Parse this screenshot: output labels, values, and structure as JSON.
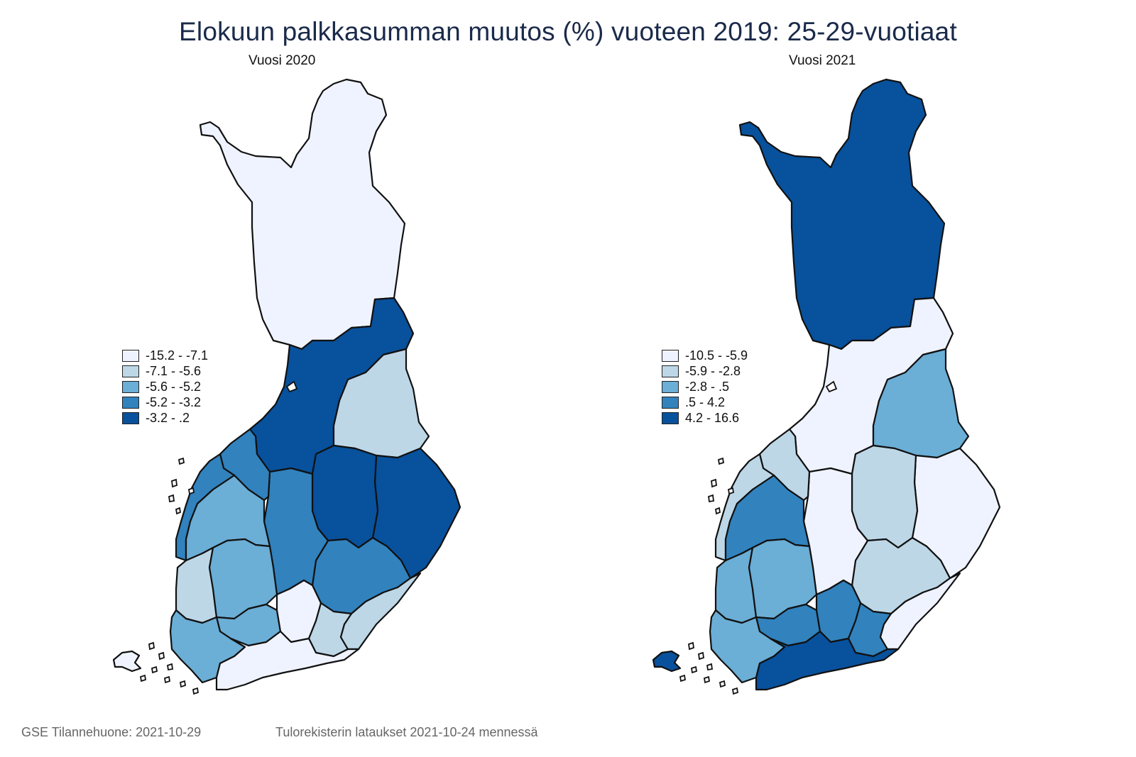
{
  "title": "Elokuun palkkasumman muutos (%) vuoteen 2019: 25-29-vuotiaat",
  "colors": {
    "c1": "#eff3ff",
    "c2": "#bdd7e7",
    "c3": "#6baed6",
    "c4": "#3182bd",
    "c5": "#08519c",
    "outline": "#111111"
  },
  "maps": [
    {
      "subtitle": "Vuosi 2020",
      "legend": [
        {
          "label": "-15.2  -  -7.1",
          "color": "#eff3ff"
        },
        {
          "label": "-7.1  -  -5.6",
          "color": "#bdd7e7"
        },
        {
          "label": "-5.6  -  -5.2",
          "color": "#6baed6"
        },
        {
          "label": "-5.2  -  -3.2",
          "color": "#3182bd"
        },
        {
          "label": "-3.2  -  .2",
          "color": "#08519c"
        }
      ],
      "regions": [
        {
          "id": "lappi",
          "class": 1
        },
        {
          "id": "pohjois-pohjanmaa",
          "class": 5
        },
        {
          "id": "kainuu",
          "class": 2
        },
        {
          "id": "pohjois-karjala",
          "class": 5
        },
        {
          "id": "pohjois-savo",
          "class": 5
        },
        {
          "id": "etela-savo",
          "class": 4
        },
        {
          "id": "keski-suomi",
          "class": 4
        },
        {
          "id": "keski-pohjanmaa",
          "class": 4
        },
        {
          "id": "pohjanmaa",
          "class": 4
        },
        {
          "id": "etela-pohjanmaa",
          "class": 3
        },
        {
          "id": "satakunta",
          "class": 2
        },
        {
          "id": "pirkanmaa",
          "class": 3
        },
        {
          "id": "kanta-hame",
          "class": 3
        },
        {
          "id": "paijat-hame",
          "class": 1
        },
        {
          "id": "kymenlaakso",
          "class": 2
        },
        {
          "id": "etela-karjala",
          "class": 2
        },
        {
          "id": "varsinais-suomi",
          "class": 3
        },
        {
          "id": "uusimaa",
          "class": 1
        },
        {
          "id": "ahvenanmaa",
          "class": 1
        }
      ]
    },
    {
      "subtitle": "Vuosi 2021",
      "legend": [
        {
          "label": "-10.5  -  -5.9",
          "color": "#eff3ff"
        },
        {
          "label": "-5.9  -  -2.8",
          "color": "#bdd7e7"
        },
        {
          "label": "-2.8  -  .5",
          "color": "#6baed6"
        },
        {
          "label": ".5  -  4.2",
          "color": "#3182bd"
        },
        {
          "label": "4.2  -  16.6",
          "color": "#08519c"
        }
      ],
      "regions": [
        {
          "id": "lappi",
          "class": 5
        },
        {
          "id": "pohjois-pohjanmaa",
          "class": 1
        },
        {
          "id": "kainuu",
          "class": 3
        },
        {
          "id": "pohjois-karjala",
          "class": 1
        },
        {
          "id": "pohjois-savo",
          "class": 2
        },
        {
          "id": "etela-savo",
          "class": 2
        },
        {
          "id": "keski-suomi",
          "class": 1
        },
        {
          "id": "keski-pohjanmaa",
          "class": 2
        },
        {
          "id": "pohjanmaa",
          "class": 2
        },
        {
          "id": "etela-pohjanmaa",
          "class": 4
        },
        {
          "id": "satakunta",
          "class": 3
        },
        {
          "id": "pirkanmaa",
          "class": 3
        },
        {
          "id": "kanta-hame",
          "class": 4
        },
        {
          "id": "paijat-hame",
          "class": 4
        },
        {
          "id": "kymenlaakso",
          "class": 4
        },
        {
          "id": "etela-karjala",
          "class": 1
        },
        {
          "id": "varsinais-suomi",
          "class": 3
        },
        {
          "id": "uusimaa",
          "class": 5
        },
        {
          "id": "ahvenanmaa",
          "class": 5
        }
      ]
    }
  ],
  "footer": {
    "left": "GSE Tilannehuone: 2021-10-29",
    "right": "Tulorekisterin lataukset 2021-10-24 mennessä"
  }
}
